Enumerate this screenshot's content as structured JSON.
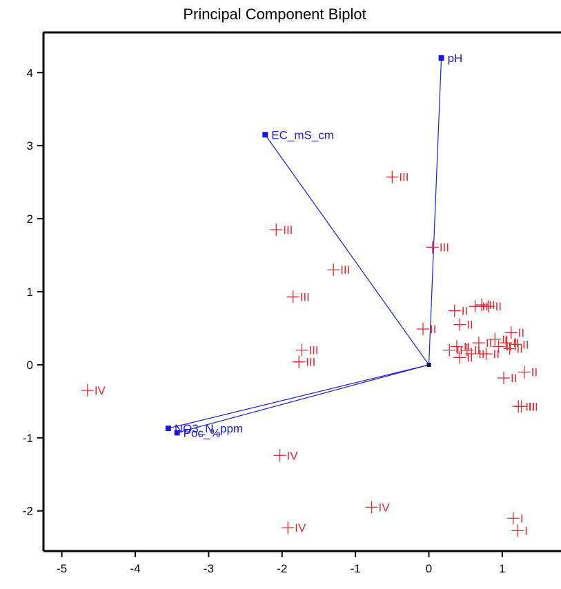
{
  "chart_data": {
    "type": "scatter",
    "title": "Principal Component Biplot",
    "xlabel": "",
    "ylabel": "",
    "xlim": [
      -5.25,
      1.8
    ],
    "ylim": [
      -2.55,
      4.55
    ],
    "xticks": [
      "-5",
      "-4",
      "-3",
      "-2",
      "-1",
      "0",
      "1"
    ],
    "yticks": [
      "-2",
      "-1",
      "0",
      "1",
      "2",
      "3",
      "4"
    ],
    "grid": false,
    "colors": {
      "observations": "#e8262c",
      "loadings": "#1a1adc",
      "axes": "#000000"
    },
    "loadings": [
      {
        "label": "pH",
        "x": 0.17,
        "y": 4.2
      },
      {
        "label": "EC_mS_cm",
        "x": -2.23,
        "y": 3.15
      },
      {
        "label": "NO3_N_ppm",
        "x": -3.55,
        "y": -0.87
      },
      {
        "label": "Poc_%",
        "x": -3.43,
        "y": -0.93
      }
    ],
    "observations": [
      {
        "label": "III",
        "x": -0.5,
        "y": 2.57
      },
      {
        "label": "III",
        "x": -2.08,
        "y": 1.85
      },
      {
        "label": "III",
        "x": 0.05,
        "y": 1.61
      },
      {
        "label": "III",
        "x": -1.3,
        "y": 1.3
      },
      {
        "label": "III",
        "x": -1.85,
        "y": 0.93
      },
      {
        "label": "III",
        "x": -1.73,
        "y": 0.2
      },
      {
        "label": "III",
        "x": -1.77,
        "y": 0.04
      },
      {
        "label": "II",
        "x": -0.08,
        "y": 0.49
      },
      {
        "label": "IV",
        "x": -4.65,
        "y": -0.35
      },
      {
        "label": "IV",
        "x": -2.03,
        "y": -1.24
      },
      {
        "label": "IV",
        "x": -0.78,
        "y": -1.95
      },
      {
        "label": "IV",
        "x": -1.92,
        "y": -2.23
      },
      {
        "label": "I",
        "x": 1.15,
        "y": -2.1
      },
      {
        "label": "I",
        "x": 1.21,
        "y": -2.27
      },
      {
        "label": "II",
        "x": 0.35,
        "y": 0.74
      },
      {
        "label": "II",
        "x": 0.63,
        "y": 0.8
      },
      {
        "label": "II",
        "x": 0.72,
        "y": 0.82
      },
      {
        "label": "II",
        "x": 0.81,
        "y": 0.8
      },
      {
        "label": "II",
        "x": 0.42,
        "y": 0.55
      },
      {
        "label": "II",
        "x": 1.12,
        "y": 0.44
      },
      {
        "label": "II",
        "x": 0.38,
        "y": 0.25
      },
      {
        "label": "II",
        "x": 0.52,
        "y": 0.2
      },
      {
        "label": "II",
        "x": 0.68,
        "y": 0.3
      },
      {
        "label": "II",
        "x": 0.9,
        "y": 0.35
      },
      {
        "label": "II",
        "x": 1.05,
        "y": 0.3
      },
      {
        "label": "II",
        "x": 1.18,
        "y": 0.28
      },
      {
        "label": "II",
        "x": 0.28,
        "y": 0.2
      },
      {
        "label": "II",
        "x": 0.42,
        "y": 0.1
      },
      {
        "label": "II",
        "x": 0.58,
        "y": 0.15
      },
      {
        "label": "II",
        "x": 0.78,
        "y": 0.15
      },
      {
        "label": "II",
        "x": 0.95,
        "y": 0.25
      },
      {
        "label": "II",
        "x": 1.1,
        "y": 0.22
      },
      {
        "label": "II",
        "x": 1.02,
        "y": -0.18
      },
      {
        "label": "II",
        "x": 1.3,
        "y": -0.1
      },
      {
        "label": "III",
        "x": 1.22,
        "y": -0.57
      },
      {
        "label": "III",
        "x": 1.26,
        "y": -0.57
      }
    ]
  }
}
